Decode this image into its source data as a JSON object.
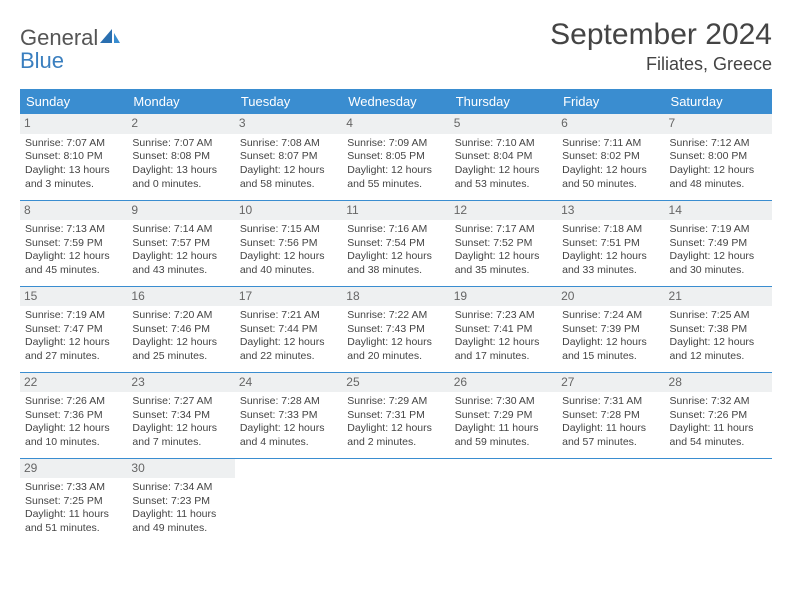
{
  "logo": {
    "line1": "General",
    "line2": "Blue"
  },
  "title": "September 2024",
  "location": "Filiates, Greece",
  "colors": {
    "header_bg": "#3a8dd0",
    "header_text": "#ffffff",
    "rule": "#3a8dd0",
    "daynum_bg": "#eef0f1",
    "text": "#444444",
    "logo_gray": "#555555",
    "logo_blue": "#3a7fbf",
    "page_bg": "#ffffff"
  },
  "typography": {
    "title_fontsize": 30,
    "location_fontsize": 18,
    "dayname_fontsize": 13,
    "daynum_fontsize": 12,
    "cell_fontsize": 10.5
  },
  "day_names": [
    "Sunday",
    "Monday",
    "Tuesday",
    "Wednesday",
    "Thursday",
    "Friday",
    "Saturday"
  ],
  "weeks": [
    [
      {
        "n": "1",
        "sunrise": "Sunrise: 7:07 AM",
        "sunset": "Sunset: 8:10 PM",
        "day1": "Daylight: 13 hours",
        "day2": "and 3 minutes."
      },
      {
        "n": "2",
        "sunrise": "Sunrise: 7:07 AM",
        "sunset": "Sunset: 8:08 PM",
        "day1": "Daylight: 13 hours",
        "day2": "and 0 minutes."
      },
      {
        "n": "3",
        "sunrise": "Sunrise: 7:08 AM",
        "sunset": "Sunset: 8:07 PM",
        "day1": "Daylight: 12 hours",
        "day2": "and 58 minutes."
      },
      {
        "n": "4",
        "sunrise": "Sunrise: 7:09 AM",
        "sunset": "Sunset: 8:05 PM",
        "day1": "Daylight: 12 hours",
        "day2": "and 55 minutes."
      },
      {
        "n": "5",
        "sunrise": "Sunrise: 7:10 AM",
        "sunset": "Sunset: 8:04 PM",
        "day1": "Daylight: 12 hours",
        "day2": "and 53 minutes."
      },
      {
        "n": "6",
        "sunrise": "Sunrise: 7:11 AM",
        "sunset": "Sunset: 8:02 PM",
        "day1": "Daylight: 12 hours",
        "day2": "and 50 minutes."
      },
      {
        "n": "7",
        "sunrise": "Sunrise: 7:12 AM",
        "sunset": "Sunset: 8:00 PM",
        "day1": "Daylight: 12 hours",
        "day2": "and 48 minutes."
      }
    ],
    [
      {
        "n": "8",
        "sunrise": "Sunrise: 7:13 AM",
        "sunset": "Sunset: 7:59 PM",
        "day1": "Daylight: 12 hours",
        "day2": "and 45 minutes."
      },
      {
        "n": "9",
        "sunrise": "Sunrise: 7:14 AM",
        "sunset": "Sunset: 7:57 PM",
        "day1": "Daylight: 12 hours",
        "day2": "and 43 minutes."
      },
      {
        "n": "10",
        "sunrise": "Sunrise: 7:15 AM",
        "sunset": "Sunset: 7:56 PM",
        "day1": "Daylight: 12 hours",
        "day2": "and 40 minutes."
      },
      {
        "n": "11",
        "sunrise": "Sunrise: 7:16 AM",
        "sunset": "Sunset: 7:54 PM",
        "day1": "Daylight: 12 hours",
        "day2": "and 38 minutes."
      },
      {
        "n": "12",
        "sunrise": "Sunrise: 7:17 AM",
        "sunset": "Sunset: 7:52 PM",
        "day1": "Daylight: 12 hours",
        "day2": "and 35 minutes."
      },
      {
        "n": "13",
        "sunrise": "Sunrise: 7:18 AM",
        "sunset": "Sunset: 7:51 PM",
        "day1": "Daylight: 12 hours",
        "day2": "and 33 minutes."
      },
      {
        "n": "14",
        "sunrise": "Sunrise: 7:19 AM",
        "sunset": "Sunset: 7:49 PM",
        "day1": "Daylight: 12 hours",
        "day2": "and 30 minutes."
      }
    ],
    [
      {
        "n": "15",
        "sunrise": "Sunrise: 7:19 AM",
        "sunset": "Sunset: 7:47 PM",
        "day1": "Daylight: 12 hours",
        "day2": "and 27 minutes."
      },
      {
        "n": "16",
        "sunrise": "Sunrise: 7:20 AM",
        "sunset": "Sunset: 7:46 PM",
        "day1": "Daylight: 12 hours",
        "day2": "and 25 minutes."
      },
      {
        "n": "17",
        "sunrise": "Sunrise: 7:21 AM",
        "sunset": "Sunset: 7:44 PM",
        "day1": "Daylight: 12 hours",
        "day2": "and 22 minutes."
      },
      {
        "n": "18",
        "sunrise": "Sunrise: 7:22 AM",
        "sunset": "Sunset: 7:43 PM",
        "day1": "Daylight: 12 hours",
        "day2": "and 20 minutes."
      },
      {
        "n": "19",
        "sunrise": "Sunrise: 7:23 AM",
        "sunset": "Sunset: 7:41 PM",
        "day1": "Daylight: 12 hours",
        "day2": "and 17 minutes."
      },
      {
        "n": "20",
        "sunrise": "Sunrise: 7:24 AM",
        "sunset": "Sunset: 7:39 PM",
        "day1": "Daylight: 12 hours",
        "day2": "and 15 minutes."
      },
      {
        "n": "21",
        "sunrise": "Sunrise: 7:25 AM",
        "sunset": "Sunset: 7:38 PM",
        "day1": "Daylight: 12 hours",
        "day2": "and 12 minutes."
      }
    ],
    [
      {
        "n": "22",
        "sunrise": "Sunrise: 7:26 AM",
        "sunset": "Sunset: 7:36 PM",
        "day1": "Daylight: 12 hours",
        "day2": "and 10 minutes."
      },
      {
        "n": "23",
        "sunrise": "Sunrise: 7:27 AM",
        "sunset": "Sunset: 7:34 PM",
        "day1": "Daylight: 12 hours",
        "day2": "and 7 minutes."
      },
      {
        "n": "24",
        "sunrise": "Sunrise: 7:28 AM",
        "sunset": "Sunset: 7:33 PM",
        "day1": "Daylight: 12 hours",
        "day2": "and 4 minutes."
      },
      {
        "n": "25",
        "sunrise": "Sunrise: 7:29 AM",
        "sunset": "Sunset: 7:31 PM",
        "day1": "Daylight: 12 hours",
        "day2": "and 2 minutes."
      },
      {
        "n": "26",
        "sunrise": "Sunrise: 7:30 AM",
        "sunset": "Sunset: 7:29 PM",
        "day1": "Daylight: 11 hours",
        "day2": "and 59 minutes."
      },
      {
        "n": "27",
        "sunrise": "Sunrise: 7:31 AM",
        "sunset": "Sunset: 7:28 PM",
        "day1": "Daylight: 11 hours",
        "day2": "and 57 minutes."
      },
      {
        "n": "28",
        "sunrise": "Sunrise: 7:32 AM",
        "sunset": "Sunset: 7:26 PM",
        "day1": "Daylight: 11 hours",
        "day2": "and 54 minutes."
      }
    ],
    [
      {
        "n": "29",
        "sunrise": "Sunrise: 7:33 AM",
        "sunset": "Sunset: 7:25 PM",
        "day1": "Daylight: 11 hours",
        "day2": "and 51 minutes."
      },
      {
        "n": "30",
        "sunrise": "Sunrise: 7:34 AM",
        "sunset": "Sunset: 7:23 PM",
        "day1": "Daylight: 11 hours",
        "day2": "and 49 minutes."
      },
      {
        "empty": true
      },
      {
        "empty": true
      },
      {
        "empty": true
      },
      {
        "empty": true
      },
      {
        "empty": true
      }
    ]
  ]
}
